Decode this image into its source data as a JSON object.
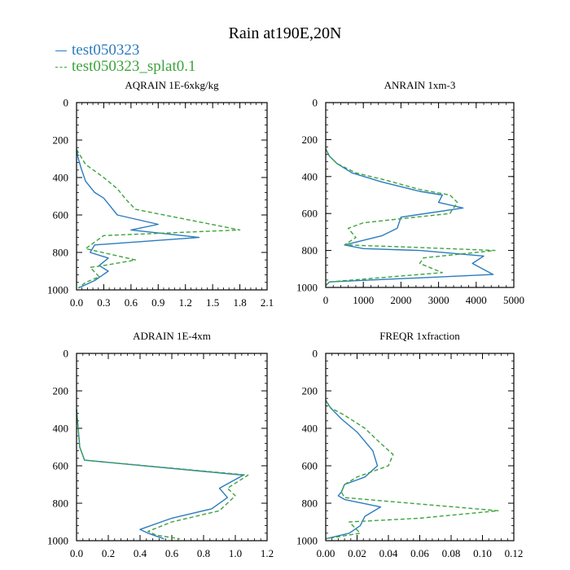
{
  "figure": {
    "title": "Rain at190E,20N",
    "colors": {
      "s1": "#2b7bbf",
      "s2": "#3ca33c"
    }
  },
  "legend": {
    "items": [
      {
        "label": "test050323",
        "color": "#2b7bbf",
        "style": "solid"
      },
      {
        "label": "test050323_splat0.1",
        "color": "#3ca33c",
        "style": "dashed"
      }
    ]
  },
  "chart_data": [
    {
      "type": "line",
      "title": "AQRAIN  1E-6xkg/kg",
      "xlim": [
        0,
        2.1
      ],
      "xticks": [
        "0.0",
        "0.3",
        "0.6",
        "0.9",
        "1.2",
        "1.5",
        "1.8",
        "2.1"
      ],
      "xtick_values": [
        0,
        0.3,
        0.6,
        0.9,
        1.2,
        1.5,
        1.8,
        2.1
      ],
      "ylim": [
        0,
        1000
      ],
      "yticks": [
        "0",
        "200",
        "400",
        "600",
        "800",
        "1000"
      ],
      "ytick_values": [
        0,
        200,
        400,
        600,
        800,
        1000
      ],
      "series": [
        {
          "name": "test050323",
          "x": [
            0,
            0.02,
            0.05,
            0.1,
            0.2,
            0.3,
            0.45,
            0.9,
            0.6,
            1.35,
            0.2,
            0.15,
            0.35,
            0.25,
            0.35,
            0.2,
            0.02
          ],
          "y": [
            250,
            300,
            350,
            420,
            480,
            510,
            600,
            650,
            680,
            720,
            760,
            800,
            830,
            870,
            900,
            950,
            990
          ]
        },
        {
          "name": "test050323_splat0.1",
          "x": [
            0,
            0.1,
            0.3,
            0.45,
            0.55,
            0.65,
            1.8,
            0.3,
            0.1,
            0.65,
            0.3,
            0.15,
            0.25,
            0.1,
            0.02
          ],
          "y": [
            250,
            330,
            400,
            460,
            520,
            570,
            680,
            710,
            780,
            840,
            870,
            880,
            930,
            960,
            990
          ]
        }
      ]
    },
    {
      "type": "line",
      "title": "ANRAIN  1xm-3",
      "xlim": [
        0,
        5000
      ],
      "xticks": [
        "0",
        "1000",
        "2000",
        "3000",
        "4000",
        "5000"
      ],
      "xtick_values": [
        0,
        1000,
        2000,
        3000,
        4000,
        5000
      ],
      "ylim": [
        0,
        1000
      ],
      "yticks": [
        "0",
        "200",
        "400",
        "600",
        "800",
        "1000"
      ],
      "ytick_values": [
        0,
        200,
        400,
        600,
        800,
        1000
      ],
      "series": [
        {
          "name": "test050323",
          "x": [
            0,
            100,
            300,
            700,
            1500,
            2500,
            3100,
            3000,
            3650,
            2000,
            1900,
            1500,
            500,
            1000,
            2500,
            4200,
            3900,
            4450,
            100,
            0
          ],
          "y": [
            250,
            290,
            330,
            380,
            430,
            480,
            500,
            540,
            570,
            620,
            680,
            720,
            770,
            790,
            800,
            830,
            870,
            930,
            970,
            990
          ]
        },
        {
          "name": "test050323_splat0.1",
          "x": [
            0,
            100,
            300,
            800,
            1600,
            2500,
            3300,
            3500,
            3300,
            1000,
            600,
            800,
            500,
            2000,
            4500,
            2600,
            2500,
            3100,
            100,
            0
          ],
          "y": [
            250,
            290,
            330,
            380,
            420,
            470,
            500,
            540,
            600,
            650,
            680,
            730,
            770,
            780,
            800,
            840,
            870,
            920,
            970,
            990
          ]
        }
      ]
    },
    {
      "type": "line",
      "title": "ADRAIN  1E-4xm",
      "xlim": [
        0,
        1.2
      ],
      "xticks": [
        "0.0",
        "0.2",
        "0.4",
        "0.6",
        "0.8",
        "1.0",
        "1.2"
      ],
      "xtick_values": [
        0,
        0.2,
        0.4,
        0.6,
        0.8,
        1.0,
        1.2
      ],
      "ylim": [
        0,
        1000
      ],
      "yticks": [
        "0",
        "200",
        "400",
        "600",
        "800",
        "1000"
      ],
      "ytick_values": [
        0,
        200,
        400,
        600,
        800,
        1000
      ],
      "series": [
        {
          "name": "test050323",
          "x": [
            0,
            0.01,
            0.02,
            0.05,
            1.05,
            0.9,
            0.95,
            0.85,
            0.6,
            0.4,
            0.45,
            0.55
          ],
          "y": [
            300,
            400,
            500,
            570,
            650,
            720,
            770,
            830,
            880,
            940,
            960,
            990
          ]
        },
        {
          "name": "test050323_splat0.1",
          "x": [
            0,
            0.01,
            0.02,
            0.05,
            1.08,
            0.95,
            1.0,
            0.9,
            0.6,
            0.45,
            0.5,
            0.65
          ],
          "y": [
            300,
            400,
            500,
            570,
            650,
            720,
            760,
            840,
            900,
            950,
            970,
            990
          ]
        }
      ]
    },
    {
      "type": "line",
      "title": "FREQR  1xfraction",
      "xlim": [
        0,
        0.12
      ],
      "xticks": [
        "0.00",
        "0.02",
        "0.04",
        "0.06",
        "0.08",
        "0.10",
        "0.12"
      ],
      "xtick_values": [
        0,
        0.02,
        0.04,
        0.06,
        0.08,
        0.1,
        0.12
      ],
      "ylim": [
        0,
        1000
      ],
      "yticks": [
        "0",
        "200",
        "400",
        "600",
        "800",
        "1000"
      ],
      "ytick_values": [
        0,
        200,
        400,
        600,
        800,
        1000
      ],
      "series": [
        {
          "name": "test050323",
          "x": [
            0,
            0.003,
            0.01,
            0.02,
            0.03,
            0.033,
            0.025,
            0.012,
            0.01,
            0.008,
            0.012,
            0.035,
            0.025,
            0.022,
            0.015,
            0.0
          ],
          "y": [
            250,
            290,
            350,
            420,
            520,
            600,
            660,
            700,
            740,
            760,
            780,
            820,
            870,
            920,
            960,
            990
          ]
        },
        {
          "name": "test050323_splat0.1",
          "x": [
            0,
            0.003,
            0.012,
            0.025,
            0.035,
            0.043,
            0.04,
            0.02,
            0.012,
            0.01,
            0.012,
            0.11,
            0.06,
            0.015,
            0.022,
            0.0
          ],
          "y": [
            250,
            290,
            330,
            400,
            480,
            540,
            600,
            660,
            700,
            740,
            770,
            840,
            880,
            900,
            960,
            990
          ]
        }
      ]
    }
  ]
}
